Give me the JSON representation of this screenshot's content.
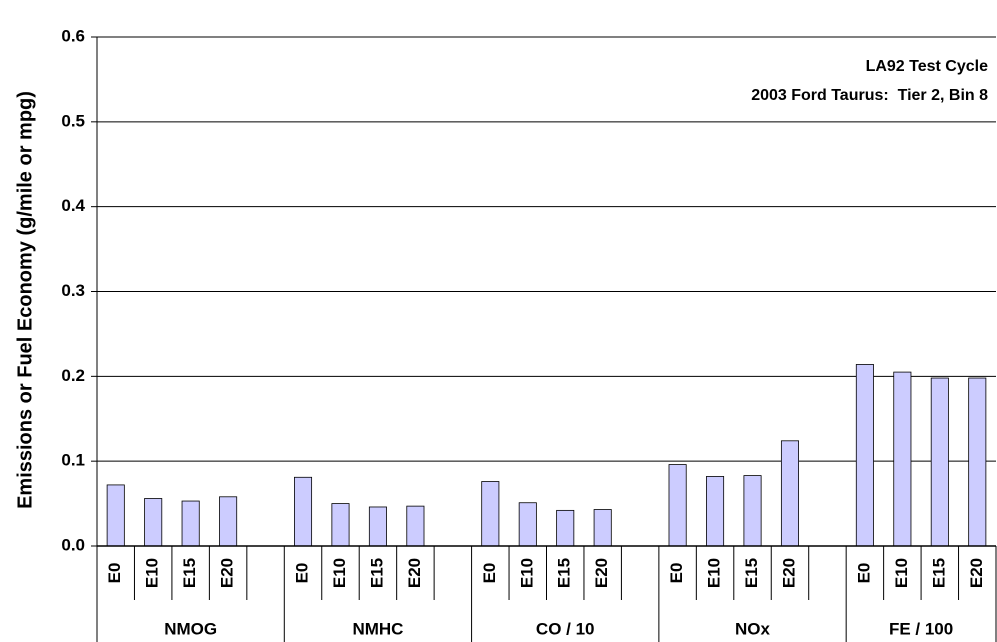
{
  "chart_data": {
    "type": "bar",
    "y_label": "Emissions or Fuel Economy (g/mile or mpg)",
    "annotations": [
      "LA92 Test Cycle",
      "2003 Ford Taurus:  Tier 2, Bin 8"
    ],
    "color": "#ccccff",
    "groups": [
      {
        "name": "NMOG",
        "categories": [
          "E0",
          "E10",
          "E15",
          "E20",
          null
        ],
        "values": [
          0.072,
          0.056,
          0.053,
          0.058,
          null
        ]
      },
      {
        "name": "NMHC",
        "categories": [
          "E0",
          "E10",
          "E15",
          "E20",
          null
        ],
        "values": [
          0.081,
          0.05,
          0.046,
          0.047,
          null
        ]
      },
      {
        "name": "CO / 10",
        "categories": [
          "E0",
          "E10",
          "E15",
          "E20",
          null
        ],
        "values": [
          0.076,
          0.051,
          0.042,
          0.043,
          null
        ]
      },
      {
        "name": "NOx",
        "categories": [
          "E0",
          "E10",
          "E15",
          "E20",
          null
        ],
        "values": [
          0.096,
          0.082,
          0.083,
          0.124,
          null
        ]
      },
      {
        "name": "FE / 100",
        "categories": [
          "E0",
          "E10",
          "E15",
          "E20"
        ],
        "values": [
          0.214,
          0.205,
          0.198,
          0.198
        ]
      }
    ],
    "ylim": [
      0,
      0.6
    ],
    "yticks": [
      {
        "value": 0,
        "label": "0.0"
      },
      0.1,
      0.2,
      0.3,
      0.4,
      0.5,
      0.6
    ],
    "grid": true
  }
}
